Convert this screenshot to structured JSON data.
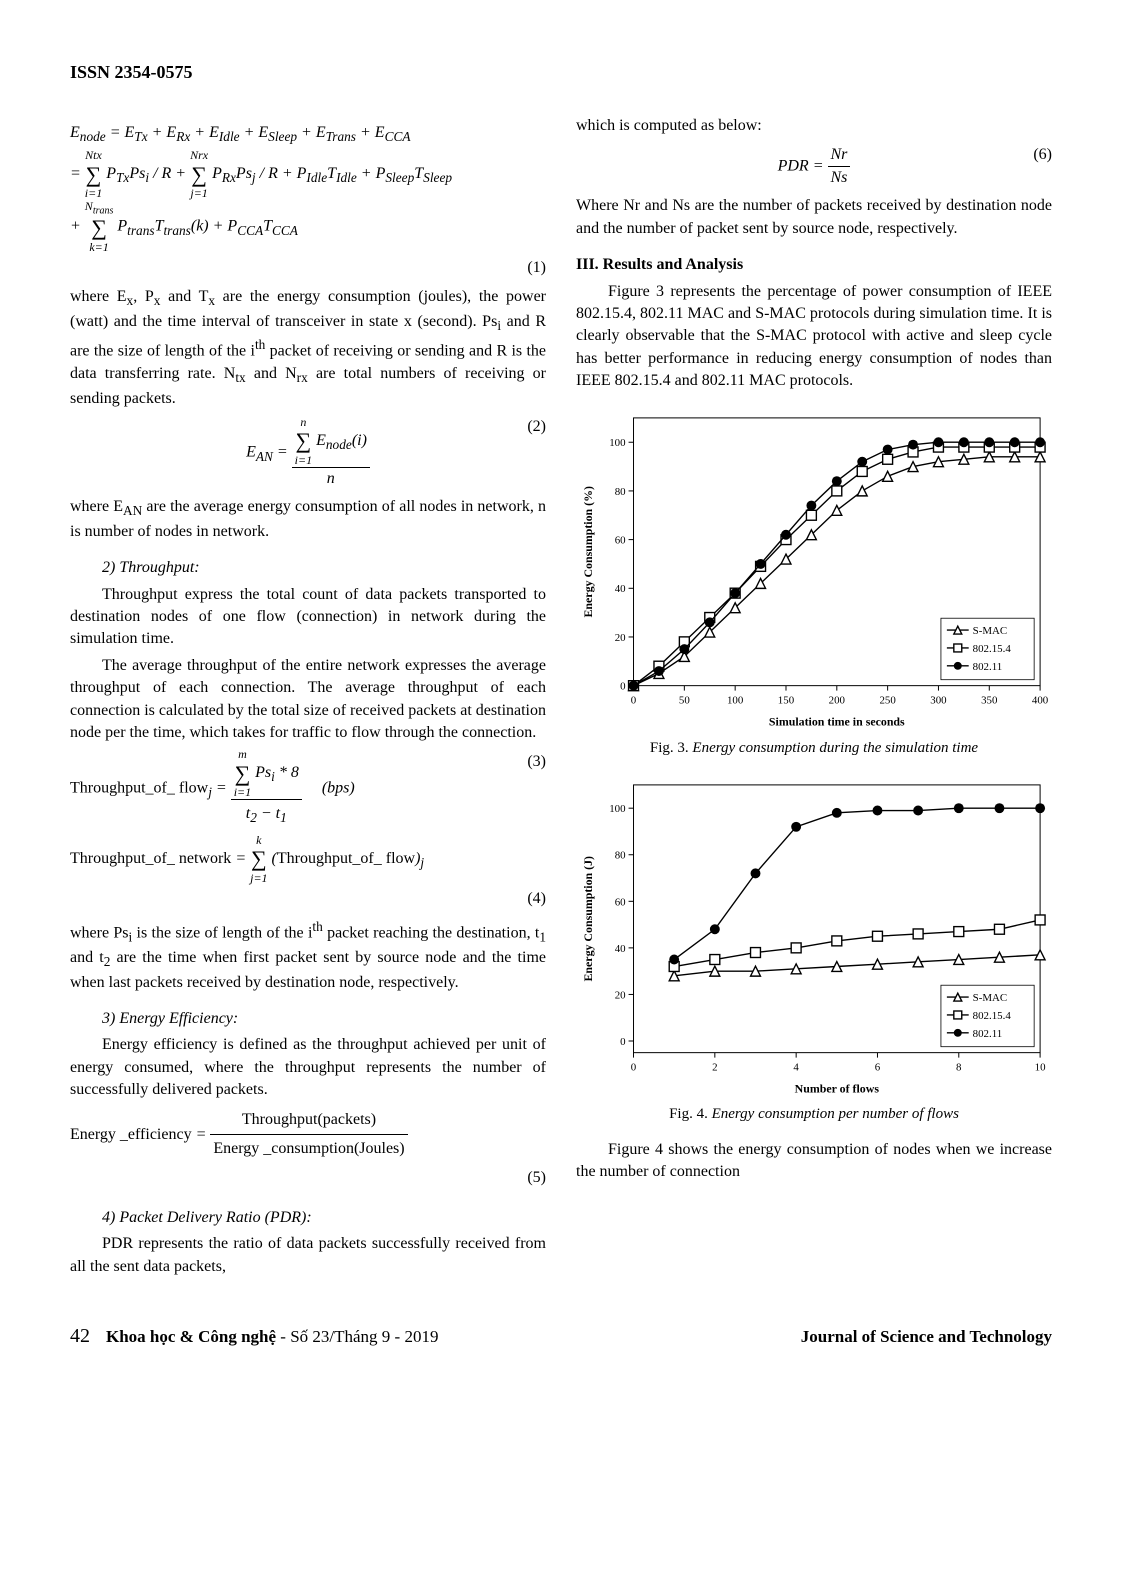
{
  "issn": "ISSN 2354-0575",
  "leftCol": {
    "eq1_text": "E_node = E_Tx + E_Rx + E_Idle + E_Sleep + E_Trans + E_CCA = Σ_{i=1}^{Ntx} P_Tx Ps_i / R + Σ_{j=1}^{Nrx} P_Rx Ps_j / R + P_Idle T_Idle + P_Sleep T_Sleep + Σ_{k=1}^{N_trans} P_trans T_trans(k) + P_CCA T_CCA",
    "eq1_num": "(1)",
    "para1a": "where E",
    "para1b": ", P",
    "para1c": " and T",
    "para1d": " are the energy consumption (joules), the power (watt) and the time interval of transceiver in state x (second). Ps",
    "para1e": " and R are the size of length of the i",
    "para1f": " packet of receiving or sending and R is the data transferring rate. N",
    "para1g": " and N",
    "para1h": " are total numbers of receiving or sending packets.",
    "eq2_left": "E_{AN} =",
    "eq2_top": "Σ_{i=1}^{n} E_node(i)",
    "eq2_bot": "n",
    "eq2_num": "(2)",
    "para2a": "where E",
    "para2b": " are the average energy consumption of all nodes in network, n is number of nodes in network.",
    "hdr2": "2) Throughput:",
    "para3": "Throughput express the total count of data packets transported to destination nodes of one flow (connection) in network during the simulation time.",
    "para4": "The average throughput of the entire network expresses the average throughput of each connection. The average throughput of each connection is calculated by the total size of received packets at destination node per the time, which takes for traffic to flow through the connection.",
    "eq3_label": "Throughput_of_ flow",
    "eq3_top": "Σ_{i=1}^{m} Ps_i * 8",
    "eq3_bot": "t_2 − t_1",
    "eq3_unit": "(bps)",
    "eq3_num": "(3)",
    "eq4_label": "Throughput_of_ network =",
    "eq4_sum": "Σ_{j=1}^{k} (Throughput_of_ flow)_j",
    "eq4_num": "(4)",
    "para5a": "where Ps",
    "para5b": " is the size of length of the i",
    "para5c": " packet reaching the destination, t",
    "para5d": " and t",
    "para5e": " are the time when first packet sent by source node and the time when last packets received by destination node, respectively.",
    "hdr3": "3)  Energy Efficiency:",
    "para6": "Energy efficiency is defined as the throughput achieved per unit of energy consumed, where the throughput represents the number of successfully delivered packets.",
    "eq5_label": "Energy _efficiency =",
    "eq5_top": "Throughput (packets)",
    "eq5_bot": "Energy _consumption (Joules)",
    "eq5_num": "(5)",
    "hdr4": "4)  Packet Delivery Ratio (PDR):",
    "para7": "PDR represents the ratio of data packets successfully received from all the sent data packets,"
  },
  "rightCol": {
    "para8": "which is computed as below:",
    "eq6_left": "PDR =",
    "eq6_top": "Nr",
    "eq6_bot": "Ns",
    "eq6_num": "(6)",
    "para9": "Where Nr and Ns are the number of packets received by destination node and the number of packet sent by source node, respectively.",
    "sec3": "III. Results and Analysis",
    "para10": "Figure 3 represents the percentage of power consumption of IEEE 802.15.4, 802.11 MAC and S-MAC protocols during simulation time. It is clearly observable that the S-MAC protocol with active and sleep cycle has better performance in reducing energy consumption of nodes than IEEE 802.15.4 and 802.11 MAC protocols.",
    "fig3_label": "Fig. 3.",
    "fig3_title": "Energy consumption during the simulation time",
    "fig4_label": "Fig. 4.",
    "fig4_title": "Energy consumption per number of flows",
    "para11": "Figure 4 shows the energy consumption of nodes when we increase the number of connection"
  },
  "chart3": {
    "type": "line",
    "xlabel": "Simulation time in seconds",
    "ylabel": "Energy Consumption (%)",
    "xlim": [
      0,
      400
    ],
    "xtick_step": 50,
    "ylim": [
      0,
      110
    ],
    "ytick_step": 20,
    "background_color": "#ffffff",
    "axis_color": "#000000",
    "label_fontsize": 12,
    "tick_fontsize": 11,
    "line_width": 1.4,
    "marker_size": 5,
    "series": [
      {
        "name": "S-MAC",
        "color": "#000000",
        "marker": "triangle",
        "x": [
          0,
          25,
          50,
          75,
          100,
          125,
          150,
          175,
          200,
          225,
          250,
          275,
          300,
          325,
          350,
          375,
          400
        ],
        "y": [
          0,
          5,
          12,
          22,
          32,
          42,
          52,
          62,
          72,
          80,
          86,
          90,
          92,
          93,
          94,
          94,
          94
        ]
      },
      {
        "name": "802.15.4",
        "color": "#000000",
        "marker": "square",
        "x": [
          0,
          25,
          50,
          75,
          100,
          125,
          150,
          175,
          200,
          225,
          250,
          275,
          300,
          325,
          350,
          375,
          400
        ],
        "y": [
          0,
          8,
          18,
          28,
          38,
          49,
          60,
          70,
          80,
          88,
          93,
          96,
          98,
          98,
          98,
          98,
          98
        ]
      },
      {
        "name": "802.11",
        "color": "#000000",
        "marker": "circle",
        "x": [
          0,
          25,
          50,
          75,
          100,
          125,
          150,
          175,
          200,
          225,
          250,
          275,
          300,
          325,
          350,
          375,
          400
        ],
        "y": [
          0,
          6,
          15,
          26,
          38,
          50,
          62,
          74,
          84,
          92,
          97,
          99,
          100,
          100,
          100,
          100,
          100
        ]
      }
    ]
  },
  "chart4": {
    "type": "line",
    "xlabel": "Number of flows",
    "ylabel": "Energy Consumption (J)",
    "xlim": [
      0,
      10
    ],
    "xtick_step": 2,
    "ylim": [
      -5,
      110
    ],
    "ytick_step": 20,
    "background_color": "#ffffff",
    "axis_color": "#000000",
    "label_fontsize": 12,
    "tick_fontsize": 11,
    "line_width": 1.4,
    "marker_size": 5,
    "series": [
      {
        "name": "S-MAC",
        "color": "#000000",
        "marker": "triangle",
        "x": [
          1,
          2,
          3,
          4,
          5,
          6,
          7,
          8,
          9,
          10
        ],
        "y": [
          28,
          30,
          30,
          31,
          32,
          33,
          34,
          35,
          36,
          37
        ]
      },
      {
        "name": "802.15.4",
        "color": "#000000",
        "marker": "square",
        "x": [
          1,
          2,
          3,
          4,
          5,
          6,
          7,
          8,
          9,
          10
        ],
        "y": [
          32,
          35,
          38,
          40,
          43,
          45,
          46,
          47,
          48,
          52
        ]
      },
      {
        "name": "802.11",
        "color": "#000000",
        "marker": "circle",
        "x": [
          1,
          2,
          3,
          4,
          5,
          6,
          7,
          8,
          9,
          10
        ],
        "y": [
          35,
          48,
          72,
          92,
          98,
          99,
          99,
          100,
          100,
          100
        ]
      }
    ]
  },
  "footer": {
    "page": "42",
    "journal_vn": "Khoa học & Công nghệ",
    "issue": " - Số 23/Tháng 9 - 2019",
    "journal_en": "Journal of Science and Technology"
  }
}
